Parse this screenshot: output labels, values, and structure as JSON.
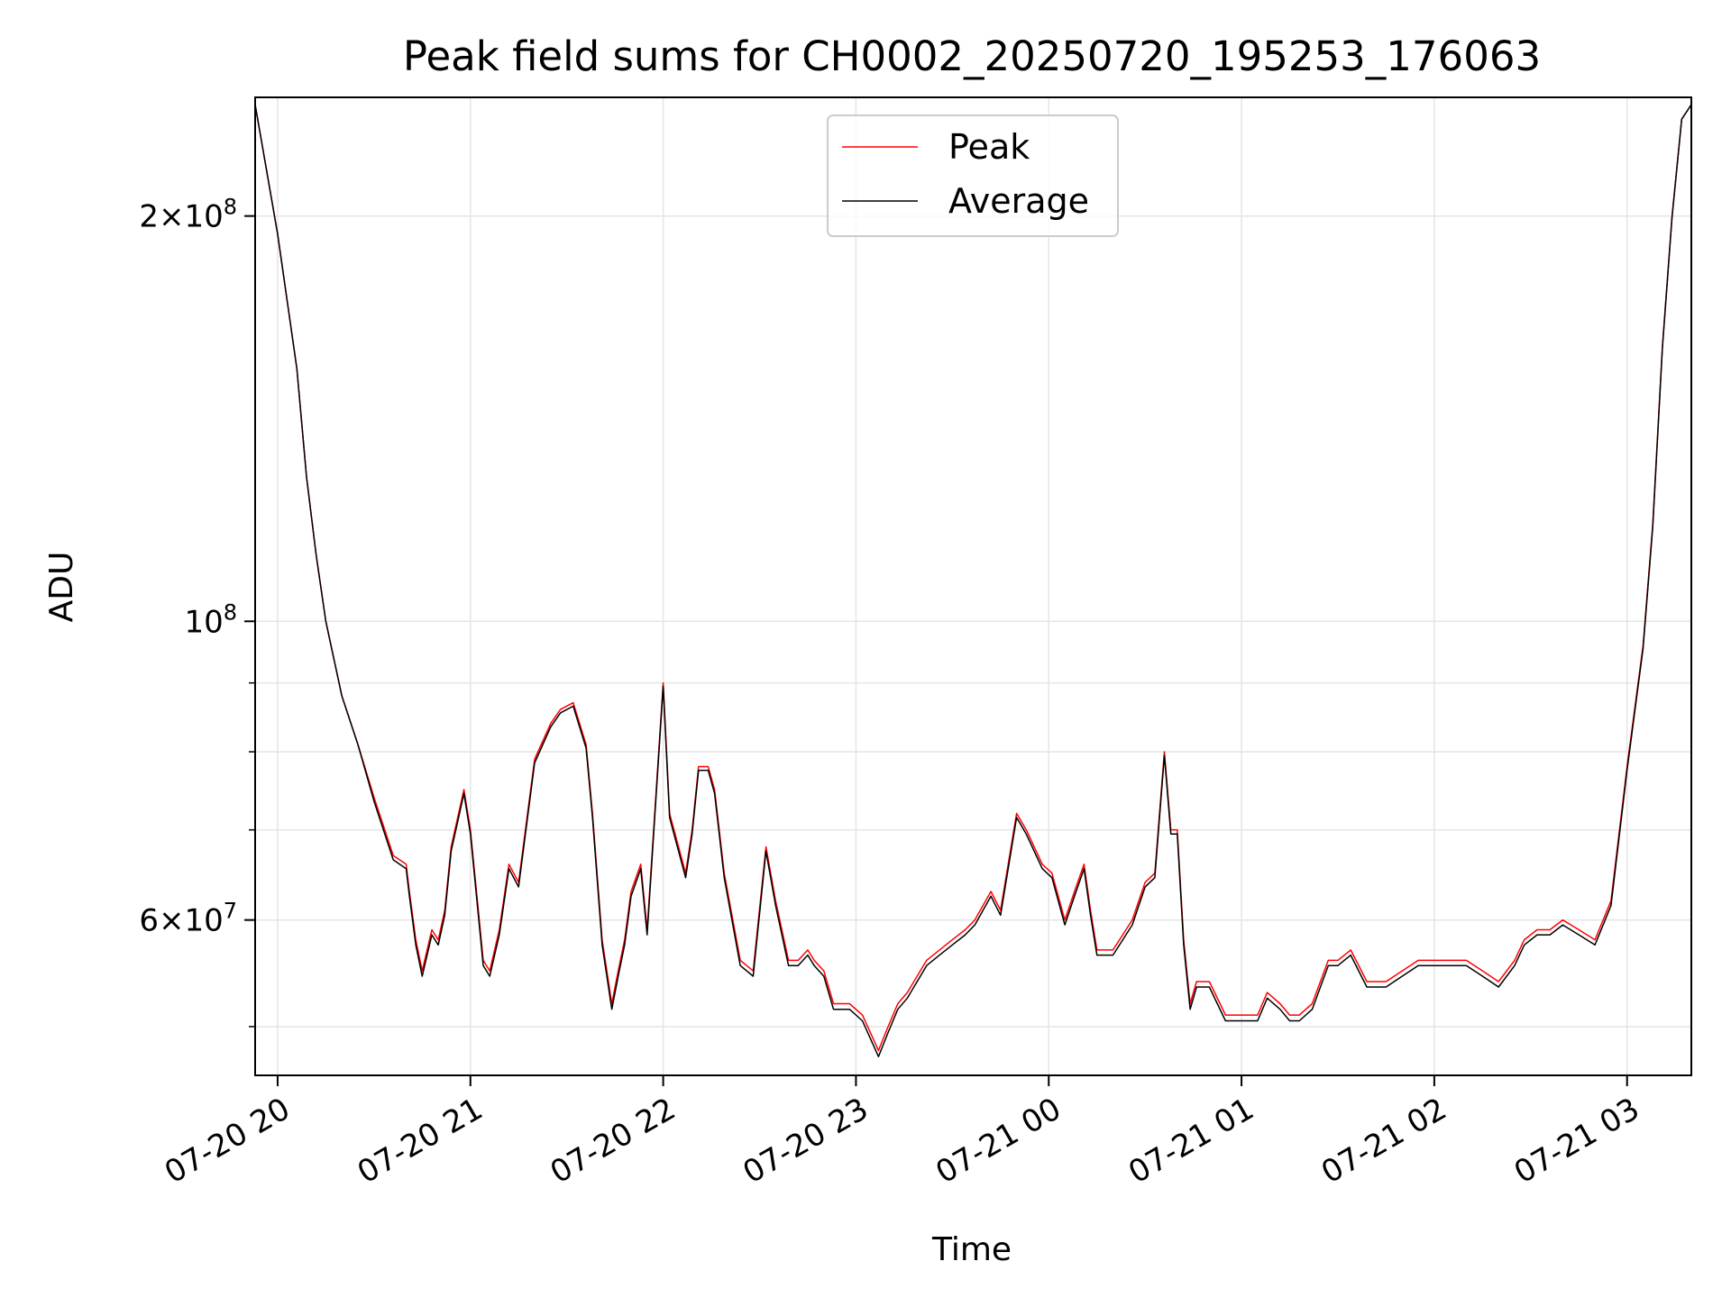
{
  "chart_data": {
    "type": "line",
    "title": "Peak field sums for CH0002_20250720_195253_176063",
    "xlabel": "Time",
    "ylabel": "ADU",
    "yscale": "log",
    "ylim": [
      46000000,
      245000000
    ],
    "xlim": [
      "2025-07-20 19:53",
      "2025-07-21 03:20"
    ],
    "grid": true,
    "legend_position": "upper-center",
    "x_ticks": [
      {
        "value": "2025-07-20 20:00",
        "label": "07-20 20"
      },
      {
        "value": "2025-07-20 21:00",
        "label": "07-20 21"
      },
      {
        "value": "2025-07-20 22:00",
        "label": "07-20 22"
      },
      {
        "value": "2025-07-20 23:00",
        "label": "07-20 23"
      },
      {
        "value": "2025-07-21 00:00",
        "label": "07-21 00"
      },
      {
        "value": "2025-07-21 01:00",
        "label": "07-21 01"
      },
      {
        "value": "2025-07-21 02:00",
        "label": "07-21 02"
      },
      {
        "value": "2025-07-21 03:00",
        "label": "07-21 03"
      }
    ],
    "y_major_ticks": [
      {
        "value": 100000000,
        "base": "10",
        "exp": "8",
        "mult": ""
      },
      {
        "value": 200000000,
        "base": "10",
        "exp": "8",
        "mult": "2"
      },
      {
        "value": 60000000,
        "base": "10",
        "exp": "7",
        "mult": "6"
      }
    ],
    "y_minor_ticks": [
      50000000,
      70000000,
      80000000,
      90000000
    ],
    "x": [
      "2025-07-20 19:53",
      "2025-07-20 20:00",
      "2025-07-20 20:06",
      "2025-07-20 20:09",
      "2025-07-20 20:12",
      "2025-07-20 20:15",
      "2025-07-20 20:20",
      "2025-07-20 20:25",
      "2025-07-20 20:30",
      "2025-07-20 20:36",
      "2025-07-20 20:40",
      "2025-07-20 20:41",
      "2025-07-20 20:43",
      "2025-07-20 20:45",
      "2025-07-20 20:48",
      "2025-07-20 20:50",
      "2025-07-20 20:52",
      "2025-07-20 20:54",
      "2025-07-20 20:58",
      "2025-07-20 21:00",
      "2025-07-20 21:04",
      "2025-07-20 21:06",
      "2025-07-20 21:09",
      "2025-07-20 21:12",
      "2025-07-20 21:15",
      "2025-07-20 21:20",
      "2025-07-20 21:25",
      "2025-07-20 21:28",
      "2025-07-20 21:32",
      "2025-07-20 21:36",
      "2025-07-20 21:38",
      "2025-07-20 21:41",
      "2025-07-20 21:44",
      "2025-07-20 21:46",
      "2025-07-20 21:48",
      "2025-07-20 21:50",
      "2025-07-20 21:53",
      "2025-07-20 21:55",
      "2025-07-20 22:00",
      "2025-07-20 22:02",
      "2025-07-20 22:07",
      "2025-07-20 22:09",
      "2025-07-20 22:11",
      "2025-07-20 22:14",
      "2025-07-20 22:16",
      "2025-07-20 22:19",
      "2025-07-20 22:24",
      "2025-07-20 22:28",
      "2025-07-20 22:32",
      "2025-07-20 22:35",
      "2025-07-20 22:39",
      "2025-07-20 22:42",
      "2025-07-20 22:45",
      "2025-07-20 22:47",
      "2025-07-20 22:50",
      "2025-07-20 22:53",
      "2025-07-20 22:58",
      "2025-07-20 23:02",
      "2025-07-20 23:07",
      "2025-07-20 23:10",
      "2025-07-20 23:13",
      "2025-07-20 23:16",
      "2025-07-20 23:22",
      "2025-07-20 23:26",
      "2025-07-20 23:30",
      "2025-07-20 23:34",
      "2025-07-20 23:37",
      "2025-07-20 23:42",
      "2025-07-20 23:45",
      "2025-07-20 23:50",
      "2025-07-20 23:53",
      "2025-07-20 23:58",
      "2025-07-21 00:01",
      "2025-07-21 00:05",
      "2025-07-21 00:08",
      "2025-07-21 00:11",
      "2025-07-21 00:13",
      "2025-07-21 00:15",
      "2025-07-21 00:17",
      "2025-07-21 00:20",
      "2025-07-21 00:26",
      "2025-07-21 00:30",
      "2025-07-21 00:33",
      "2025-07-21 00:36",
      "2025-07-21 00:38",
      "2025-07-21 00:40",
      "2025-07-21 00:42",
      "2025-07-21 00:44",
      "2025-07-21 00:46",
      "2025-07-21 00:50",
      "2025-07-21 00:55",
      "2025-07-21 01:00",
      "2025-07-21 01:05",
      "2025-07-21 01:08",
      "2025-07-21 01:12",
      "2025-07-21 01:15",
      "2025-07-21 01:18",
      "2025-07-21 01:22",
      "2025-07-21 01:27",
      "2025-07-21 01:30",
      "2025-07-21 01:34",
      "2025-07-21 01:39",
      "2025-07-21 01:45",
      "2025-07-21 01:50",
      "2025-07-21 01:55",
      "2025-07-21 02:00",
      "2025-07-21 02:05",
      "2025-07-21 02:10",
      "2025-07-21 02:15",
      "2025-07-21 02:20",
      "2025-07-21 02:25",
      "2025-07-21 02:28",
      "2025-07-21 02:32",
      "2025-07-21 02:36",
      "2025-07-21 02:40",
      "2025-07-21 02:45",
      "2025-07-21 02:50",
      "2025-07-21 02:55",
      "2025-07-21 03:00",
      "2025-07-21 03:05",
      "2025-07-21 03:08",
      "2025-07-21 03:11",
      "2025-07-21 03:14",
      "2025-07-21 03:17",
      "2025-07-21 03:20"
    ],
    "series": [
      {
        "name": "Peak",
        "color": "#ff0000",
        "values": [
          242000000,
          194000000,
          154000000,
          128000000,
          112000000,
          100000000,
          88000000,
          81000000,
          74000000,
          67000000,
          66000000,
          63000000,
          58000000,
          55000000,
          59000000,
          58000000,
          61000000,
          68000000,
          75000000,
          70000000,
          56000000,
          55000000,
          59000000,
          66000000,
          64000000,
          79000000,
          84000000,
          86000000,
          87000000,
          81000000,
          72000000,
          58000000,
          52000000,
          55000000,
          58000000,
          63000000,
          66000000,
          59000000,
          90000000,
          72000000,
          65000000,
          70000000,
          78000000,
          78000000,
          75000000,
          65000000,
          56000000,
          55000000,
          68000000,
          62000000,
          56000000,
          56000000,
          57000000,
          56000000,
          55000000,
          52000000,
          52000000,
          51000000,
          48000000,
          50000000,
          52000000,
          53000000,
          56000000,
          57000000,
          58000000,
          59000000,
          60000000,
          63000000,
          61000000,
          72000000,
          70000000,
          66000000,
          65000000,
          60000000,
          63000000,
          66000000,
          61000000,
          57000000,
          57000000,
          57000000,
          60000000,
          64000000,
          65000000,
          80000000,
          70000000,
          70000000,
          58000000,
          52000000,
          54000000,
          54000000,
          51000000,
          51000000,
          51000000,
          53000000,
          52000000,
          51000000,
          51000000,
          52000000,
          56000000,
          56000000,
          57000000,
          54000000,
          54000000,
          55000000,
          56000000,
          56000000,
          56000000,
          56000000,
          55000000,
          54000000,
          56000000,
          58000000,
          59000000,
          59000000,
          60000000,
          59000000,
          58000000,
          62000000,
          78000000,
          96000000,
          118000000,
          160000000,
          200000000,
          236000000,
          242000000
        ]
      },
      {
        "name": "Average",
        "color": "#000000",
        "values": [
          242000000,
          194000000,
          154000000,
          128000000,
          112000000,
          100000000,
          88000000,
          81000000,
          73500000,
          66500000,
          65500000,
          62500000,
          57500000,
          54500000,
          58500000,
          57500000,
          60500000,
          67500000,
          74500000,
          69500000,
          55500000,
          54500000,
          58500000,
          65500000,
          63500000,
          78500000,
          83500000,
          85500000,
          86500000,
          80500000,
          71500000,
          57500000,
          51500000,
          54500000,
          57500000,
          62500000,
          65500000,
          58500000,
          89500000,
          71500000,
          64500000,
          69500000,
          77500000,
          77500000,
          74500000,
          64500000,
          55500000,
          54500000,
          67500000,
          61500000,
          55500000,
          55500000,
          56500000,
          55500000,
          54500000,
          51500000,
          51500000,
          50500000,
          47500000,
          49500000,
          51500000,
          52500000,
          55500000,
          56500000,
          57500000,
          58500000,
          59500000,
          62500000,
          60500000,
          71500000,
          69500000,
          65500000,
          64500000,
          59500000,
          62500000,
          65500000,
          60500000,
          56500000,
          56500000,
          56500000,
          59500000,
          63500000,
          64500000,
          79500000,
          69500000,
          69500000,
          57500000,
          51500000,
          53500000,
          53500000,
          50500000,
          50500000,
          50500000,
          52500000,
          51500000,
          50500000,
          50500000,
          51500000,
          55500000,
          55500000,
          56500000,
          53500000,
          53500000,
          54500000,
          55500000,
          55500000,
          55500000,
          55500000,
          54500000,
          53500000,
          55500000,
          57500000,
          58500000,
          58500000,
          59500000,
          58500000,
          57500000,
          61500000,
          77500000,
          95500000,
          117500000,
          159500000,
          199500000,
          236000000,
          242000000
        ]
      }
    ]
  }
}
